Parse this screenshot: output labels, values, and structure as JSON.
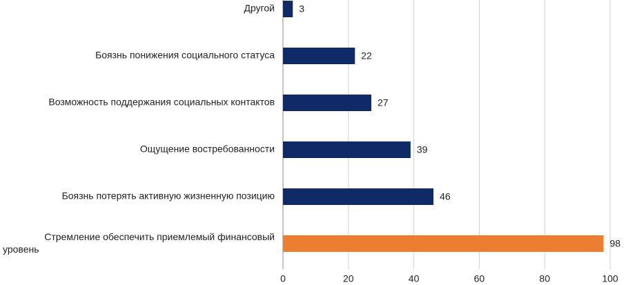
{
  "chart_data": {
    "type": "bar",
    "orientation": "horizontal",
    "categories": [
      "Другой",
      "Боязнь понижения социального статуса",
      "Возможность поддержания социальных контактов",
      "Ощущение востребованности",
      "Боязнь потерять активную жизненную позицию",
      "Стремление обеспечить приемлемый финансовый уровень"
    ],
    "values": [
      3,
      22,
      27,
      39,
      46,
      98
    ],
    "colors": [
      "#0f2a66",
      "#0f2a66",
      "#0f2a66",
      "#0f2a66",
      "#0f2a66",
      "#ed7d31"
    ],
    "xlim": [
      0,
      100
    ],
    "xticks": [
      0,
      20,
      40,
      60,
      80,
      100
    ],
    "grid": true
  }
}
